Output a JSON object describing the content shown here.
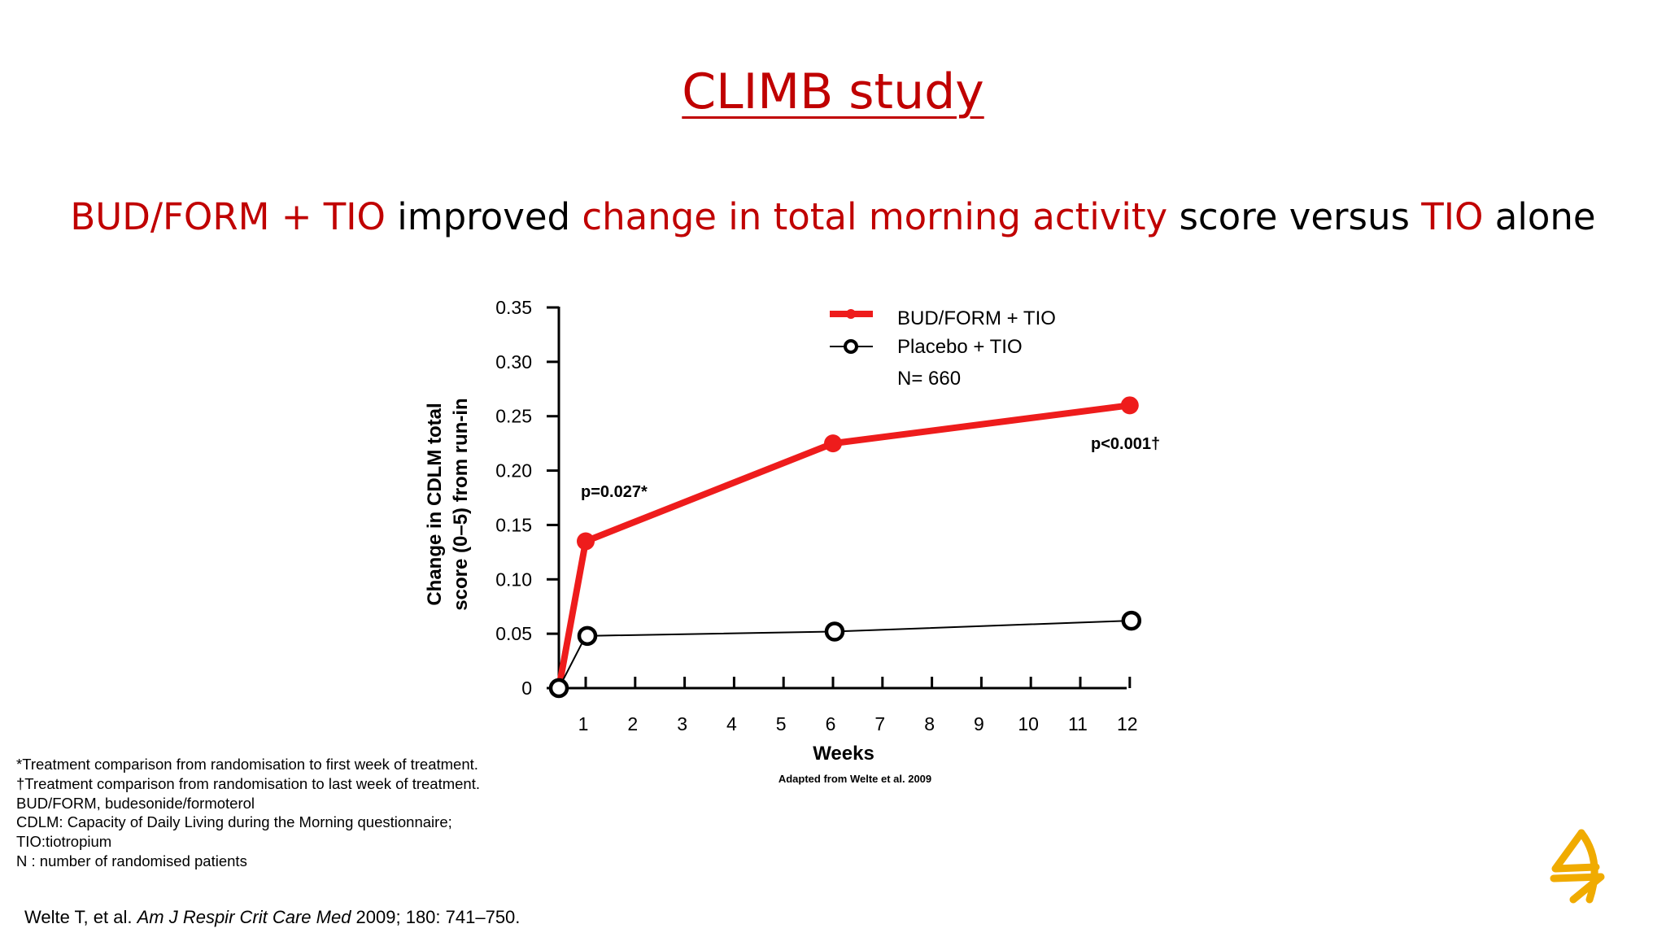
{
  "slide": {
    "title": "CLIMB study",
    "subtitle_parts": [
      {
        "text": "BUD/FORM + TIO",
        "color": "red"
      },
      {
        "text": " improved ",
        "color": "black"
      },
      {
        "text": "change in total morning activity",
        "color": "red"
      },
      {
        "text": " score versus ",
        "color": "black"
      },
      {
        "text": "TIO",
        "color": "red"
      },
      {
        "text": " alone",
        "color": "black"
      }
    ],
    "footnotes": [
      "*Treatment comparison from randomisation to first week of treatment.",
      " †Treatment comparison from randomisation to last week of treatment.",
      "BUD/FORM, budesonide/formoterol",
      "CDLM: Capacity of Daily Living during the Morning questionnaire;",
      "TIO:tiotropium",
      "N : number of randomised patients"
    ],
    "citation": {
      "authors": "Welte T, et al. ",
      "journal": "Am J Respir Crit Care Med",
      "details": " 2009; 180: 741–750."
    },
    "colors": {
      "accent_red": "#c00000",
      "series_red": "#ee1c1c",
      "logo_gold": "#f0ab00"
    },
    "logo_icon": "company-logo-icon"
  },
  "chart_data": {
    "type": "line",
    "ylabel_lines": [
      "Change in CDLM total",
      "score (0–5) from run-in"
    ],
    "xlabel": "Weeks",
    "source_note": "Adapted from Welte et al. 2009",
    "n_label": "N= 660",
    "ylim": [
      0,
      0.35
    ],
    "y_ticks": [
      {
        "value": 0,
        "label": "0"
      },
      {
        "value": 0.05,
        "label": "0.05"
      },
      {
        "value": 0.1,
        "label": "0.10"
      },
      {
        "value": 0.15,
        "label": "0.15"
      },
      {
        "value": 0.2,
        "label": "0.20"
      },
      {
        "value": 0.25,
        "label": "0.25"
      },
      {
        "value": 0.3,
        "label": "0.30"
      },
      {
        "value": 0.35,
        "label": "0.35"
      }
    ],
    "x_ticks": [
      "1",
      "2",
      "3",
      "4",
      "5",
      "6",
      "7",
      "8",
      "9",
      "10",
      "11",
      "12"
    ],
    "grid": false,
    "legend_position": "top-right",
    "series": [
      {
        "name": "BUD/FORM + TIO",
        "color": "#ee1c1c",
        "marker": "filled-circle",
        "points": [
          {
            "x": "0",
            "y": 0
          },
          {
            "x": "1",
            "y": 0.135
          },
          {
            "x": "6",
            "y": 0.225
          },
          {
            "x": "12",
            "y": 0.26
          }
        ]
      },
      {
        "name": "Placebo + TIO",
        "color": "#000000",
        "marker": "open-circle",
        "points": [
          {
            "x": "0",
            "y": 0
          },
          {
            "x": "1",
            "y": 0.048
          },
          {
            "x": "6",
            "y": 0.052
          },
          {
            "x": "12",
            "y": 0.062
          }
        ]
      }
    ],
    "annotations": [
      {
        "text": "p=0.027*",
        "near_x": "1"
      },
      {
        "text": "p<0.001†",
        "near_x": "12"
      }
    ]
  }
}
